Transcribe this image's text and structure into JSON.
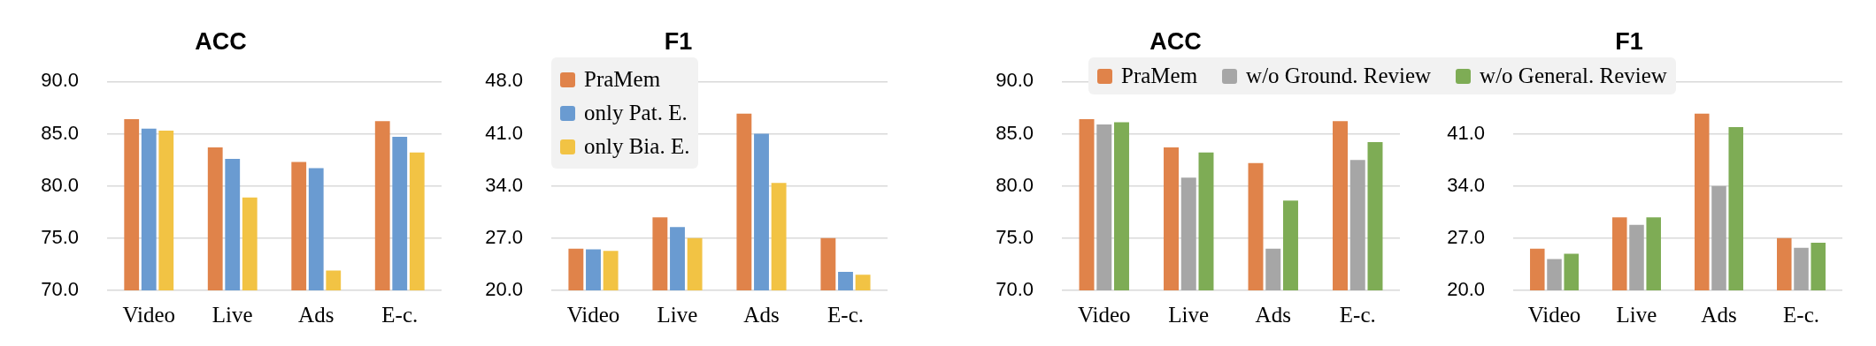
{
  "chart_data": [
    {
      "type": "bar",
      "title": "ACC",
      "categories": [
        "Video",
        "Live",
        "Ads",
        "E-c."
      ],
      "ylim": [
        70,
        90
      ],
      "yticks": [
        {
          "value": 70,
          "label": "70.0"
        },
        {
          "value": 75,
          "label": "75.0"
        },
        {
          "value": 80,
          "label": "80.0"
        },
        {
          "value": 85,
          "label": "85.0"
        },
        {
          "value": 90,
          "label": "90.0"
        }
      ],
      "grid": "y",
      "legend": false,
      "series": [
        {
          "color": "#e0834a",
          "values": [
            86.4,
            83.7,
            82.3,
            86.2
          ]
        },
        {
          "color": "#6a9bd1",
          "values": [
            85.5,
            82.6,
            81.7,
            84.7
          ]
        },
        {
          "color": "#f2c344",
          "values": [
            85.3,
            78.9,
            71.9,
            83.2
          ]
        }
      ]
    },
    {
      "type": "bar",
      "title": "F1",
      "categories": [
        "Video",
        "Live",
        "Ads",
        "E-c."
      ],
      "ylim": [
        20,
        48
      ],
      "yticks": [
        {
          "value": 20,
          "label": "20.0"
        },
        {
          "value": 27,
          "label": "27.0"
        },
        {
          "value": 34,
          "label": "34.0"
        },
        {
          "value": 41,
          "label": "41.0"
        },
        {
          "value": 48,
          "label": "48.0"
        }
      ],
      "grid": "y",
      "legend": "top left",
      "series": [
        {
          "name": "PraMem",
          "color": "#e0834a",
          "values": [
            25.6,
            29.8,
            43.7,
            27.0
          ]
        },
        {
          "name": "only Pat. E.",
          "color": "#6a9bd1",
          "values": [
            25.5,
            28.5,
            41.0,
            22.5
          ]
        },
        {
          "name": "only Bia. E.",
          "color": "#f2c344",
          "values": [
            25.3,
            27.0,
            34.4,
            22.1
          ]
        }
      ]
    },
    {
      "type": "bar",
      "title": "ACC",
      "categories": [
        "Video",
        "Live",
        "Ads",
        "E-c."
      ],
      "ylim": [
        70,
        90
      ],
      "yticks": [
        {
          "value": 70,
          "label": "70.0"
        },
        {
          "value": 75,
          "label": "75.0"
        },
        {
          "value": 80,
          "label": "80.0"
        },
        {
          "value": 85,
          "label": "85.0"
        },
        {
          "value": 90,
          "label": "90.0"
        }
      ],
      "grid": "y",
      "legend": "top",
      "series": [
        {
          "name": "PraMem",
          "color": "#e0834a",
          "values": [
            86.4,
            83.7,
            82.2,
            86.2
          ]
        },
        {
          "name": "w/o Ground. Review",
          "color": "#a6a6a6",
          "values": [
            85.9,
            80.8,
            74.0,
            82.5
          ]
        },
        {
          "name": "w/o General. Review",
          "color": "#7eac55",
          "values": [
            86.1,
            83.2,
            78.6,
            84.2
          ]
        }
      ]
    },
    {
      "type": "bar",
      "title": "F1",
      "categories": [
        "Video",
        "Live",
        "Ads",
        "E-c."
      ],
      "ylim": [
        20,
        48
      ],
      "yticks": [
        {
          "value": 20,
          "label": "20.0"
        },
        {
          "value": 27,
          "label": "27.0"
        },
        {
          "value": 34,
          "label": "34.0"
        },
        {
          "value": 41,
          "label": "41.0"
        },
        {
          "value": 48,
          "label": null
        }
      ],
      "grid": "y",
      "legend": false,
      "series": [
        {
          "color": "#e0834a",
          "values": [
            25.6,
            29.8,
            43.7,
            27.0
          ]
        },
        {
          "color": "#a6a6a6",
          "values": [
            24.2,
            28.8,
            34.0,
            25.7
          ]
        },
        {
          "color": "#7eac55",
          "values": [
            24.9,
            29.8,
            41.9,
            26.4
          ]
        }
      ]
    }
  ]
}
